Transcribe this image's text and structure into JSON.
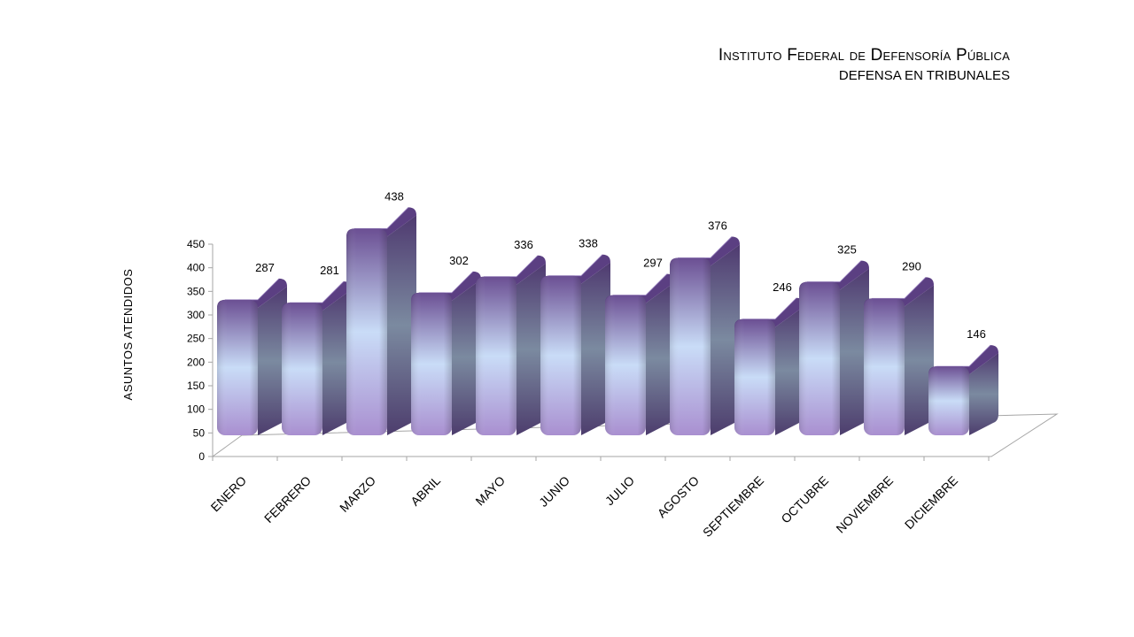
{
  "header": {
    "title": "Instituto Federal de Defensoría Pública",
    "subtitle": "DEFENSA EN TRIBUNALES"
  },
  "chart_data": {
    "type": "bar",
    "style": "3d-cylinder-column",
    "categories": [
      "ENERO",
      "FEBRERO",
      "MARZO",
      "ABRIL",
      "MAYO",
      "JUNIO",
      "JULIO",
      "AGOSTO",
      "SEPTIEMBRE",
      "OCTUBRE",
      "NOVIEMBRE",
      "DICIEMBRE"
    ],
    "values": [
      287,
      281,
      438,
      302,
      336,
      338,
      297,
      376,
      246,
      325,
      290,
      146
    ],
    "ylabel": "ASUNTOS ATENDIDOS",
    "xlabel": "",
    "ylim": [
      0,
      450
    ],
    "yticks": [
      0,
      50,
      100,
      150,
      200,
      250,
      300,
      350,
      400,
      450
    ],
    "grid": false,
    "legend": "none",
    "colors": {
      "bar_dark": "#6b4f93",
      "bar_light": "#c9dcf7",
      "bar_side": "#5c6378",
      "bar_top": "#5b3f82",
      "axis": "#a6a6a6"
    }
  }
}
